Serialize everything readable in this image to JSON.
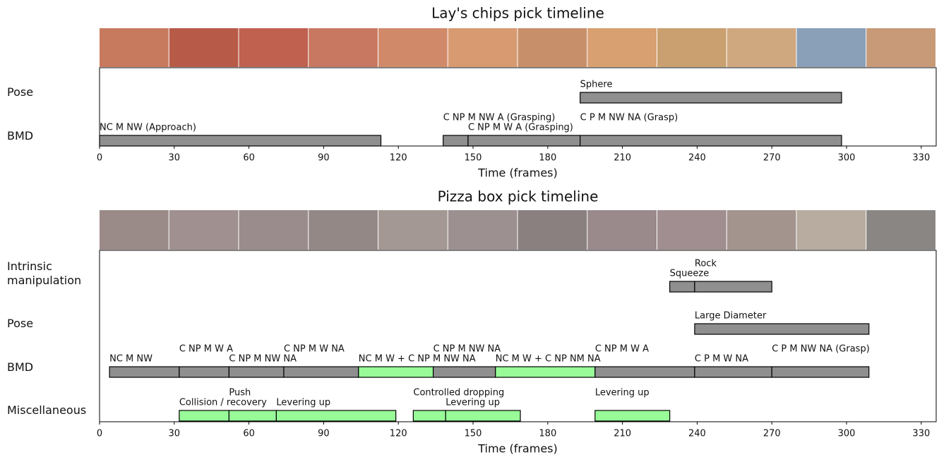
{
  "chart_data": [
    {
      "type": "timeline",
      "title": "Lay's chips pick timeline",
      "xlabel": "Time (frames)",
      "xlim": [
        0,
        336
      ],
      "xticks": [
        0,
        30,
        60,
        90,
        120,
        150,
        180,
        210,
        240,
        270,
        300,
        330
      ],
      "rows": [
        {
          "name": "Pose",
          "segments": [
            {
              "label": "Sphere",
              "start": 193,
              "end": 298,
              "color": "#8f8f8f"
            }
          ]
        },
        {
          "name": "BMD",
          "segments": [
            {
              "label": "NC M NW (Approach)",
              "start": 0,
              "end": 113,
              "color": "#8f8f8f"
            },
            {
              "label": "C NP M NW A (Grasping)",
              "start": 138,
              "end": 148,
              "color": "#8f8f8f"
            },
            {
              "label": "C NP M W A (Grasping)",
              "start": 148,
              "end": 193,
              "color": "#8f8f8f"
            },
            {
              "label": "C P M NW NA (Grasp)",
              "start": 193,
              "end": 298,
              "color": "#8f8f8f"
            }
          ]
        }
      ]
    },
    {
      "type": "timeline",
      "title": "Pizza box pick timeline",
      "xlabel": "Time (frames)",
      "xlim": [
        0,
        336
      ],
      "xticks": [
        0,
        30,
        60,
        90,
        120,
        150,
        180,
        210,
        240,
        270,
        300,
        330
      ],
      "rows": [
        {
          "name": "Intrinsic\nmanipulation",
          "segments": [
            {
              "label": "Squeeze",
              "start": 229,
              "end": 239,
              "color": "#8f8f8f"
            },
            {
              "label": "Rock",
              "start": 239,
              "end": 270,
              "color": "#8f8f8f"
            }
          ]
        },
        {
          "name": "Pose",
          "segments": [
            {
              "label": "Large Diameter",
              "start": 239,
              "end": 309,
              "color": "#8f8f8f"
            }
          ]
        },
        {
          "name": "BMD",
          "segments": [
            {
              "label": "NC M NW",
              "start": 4,
              "end": 32,
              "color": "#8f8f8f"
            },
            {
              "label": "C NP M W A",
              "start": 32,
              "end": 52,
              "color": "#8f8f8f"
            },
            {
              "label": "C NP M NW NA",
              "start": 52,
              "end": 74,
              "color": "#8f8f8f"
            },
            {
              "label": "C NP M W NA",
              "start": 74,
              "end": 104,
              "color": "#8f8f8f"
            },
            {
              "label": "NC M W + C NP M NW NA",
              "start": 104,
              "end": 134,
              "color": "#98fb98"
            },
            {
              "label": "C NP M NW NA",
              "start": 134,
              "end": 159,
              "color": "#8f8f8f"
            },
            {
              "label": "NC M W + C NP NM NA",
              "start": 159,
              "end": 199,
              "color": "#98fb98"
            },
            {
              "label": "C NP M W A",
              "start": 199,
              "end": 239,
              "color": "#8f8f8f"
            },
            {
              "label": "C P M W NA",
              "start": 239,
              "end": 270,
              "color": "#8f8f8f"
            },
            {
              "label": "C P M NW NA (Grasp)",
              "start": 270,
              "end": 309,
              "color": "#8f8f8f"
            }
          ]
        },
        {
          "name": "Miscellaneous",
          "segments": [
            {
              "label": "Collision / recovery",
              "start": 32,
              "end": 52,
              "color": "#98fb98"
            },
            {
              "label": "Push",
              "start": 52,
              "end": 71,
              "color": "#98fb98"
            },
            {
              "label": "Levering up",
              "start": 71,
              "end": 119,
              "color": "#98fb98"
            },
            {
              "label": "Controlled dropping",
              "start": 126,
              "end": 139,
              "color": "#98fb98"
            },
            {
              "label": "Levering up",
              "start": 139,
              "end": 169,
              "color": "#98fb98"
            },
            {
              "label": "Levering up",
              "start": 199,
              "end": 229,
              "color": "#98fb98"
            }
          ]
        }
      ]
    }
  ]
}
